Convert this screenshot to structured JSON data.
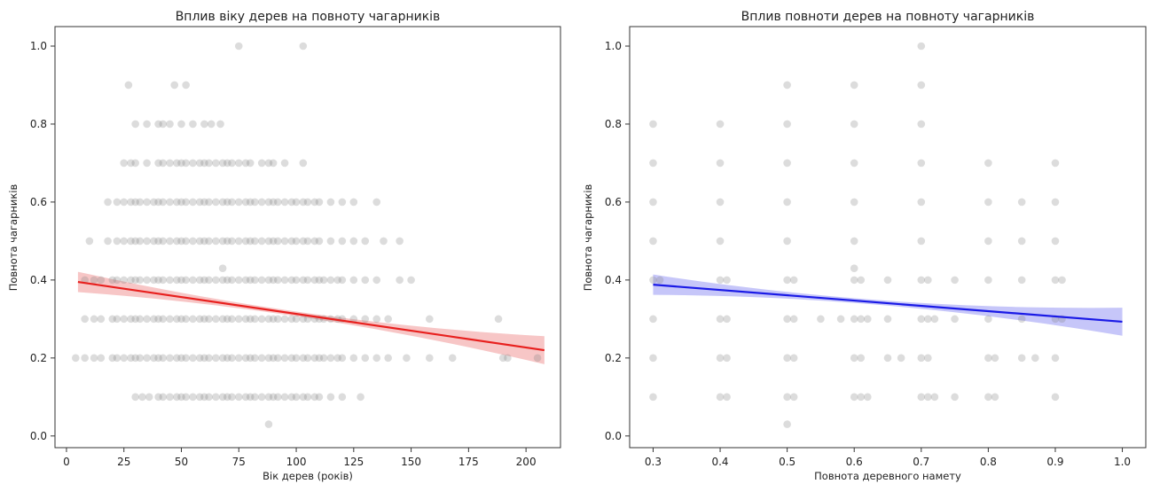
{
  "chart_data": [
    {
      "type": "scatter",
      "title": "Вплив віку дерев на повноту чагарників",
      "xlabel": "Вік дерев (років)",
      "ylabel": "Повнота чагарників",
      "xlim": [
        -5,
        215
      ],
      "ylim": [
        -0.03,
        1.05
      ],
      "xticks": [
        0,
        25,
        50,
        75,
        100,
        125,
        150,
        175,
        200
      ],
      "xtick_labels": [
        "0",
        "25",
        "50",
        "75",
        "100",
        "125",
        "150",
        "175",
        "200"
      ],
      "yticks": [
        0.0,
        0.2,
        0.4,
        0.6,
        0.8,
        1.0
      ],
      "ytick_labels": [
        "0.0",
        "0.2",
        "0.4",
        "0.6",
        "0.8",
        "1.0"
      ],
      "grid": false,
      "point_color": "#808080",
      "regression": {
        "x": [
          5,
          208
        ],
        "y": [
          0.395,
          0.22
        ],
        "color": "#e8201e",
        "band_color": "#f2a0a0"
      },
      "points_by_level": [
        {
          "y": 1.0,
          "x": [
            75,
            103
          ]
        },
        {
          "y": 0.9,
          "x": [
            27,
            47,
            52
          ]
        },
        {
          "y": 0.8,
          "x": [
            30,
            35,
            40,
            42,
            45,
            50,
            55,
            60,
            63,
            67
          ]
        },
        {
          "y": 0.7,
          "x": [
            25,
            28,
            30,
            35,
            40,
            42,
            45,
            48,
            50,
            52,
            55,
            58,
            60,
            62,
            65,
            68,
            70,
            72,
            75,
            78,
            80,
            85,
            88,
            90,
            95,
            103
          ]
        },
        {
          "y": 0.6,
          "x": [
            18,
            22,
            25,
            28,
            30,
            32,
            35,
            38,
            40,
            42,
            45,
            48,
            50,
            52,
            55,
            58,
            60,
            62,
            65,
            68,
            70,
            72,
            75,
            78,
            80,
            82,
            85,
            88,
            90,
            92,
            95,
            98,
            100,
            103,
            105,
            108,
            110,
            115,
            120,
            125,
            135
          ]
        },
        {
          "y": 0.5,
          "x": [
            10,
            18,
            22,
            25,
            28,
            30,
            32,
            35,
            38,
            40,
            42,
            45,
            48,
            50,
            52,
            55,
            58,
            60,
            62,
            65,
            68,
            70,
            72,
            75,
            78,
            80,
            82,
            85,
            88,
            90,
            92,
            95,
            98,
            100,
            103,
            105,
            108,
            110,
            115,
            120,
            125,
            130,
            138,
            145
          ]
        },
        {
          "y": 0.43,
          "x": [
            68
          ]
        },
        {
          "y": 0.4,
          "x": [
            8,
            12,
            15,
            20,
            22,
            25,
            28,
            30,
            32,
            35,
            38,
            40,
            42,
            45,
            48,
            50,
            52,
            55,
            58,
            60,
            62,
            65,
            68,
            70,
            72,
            75,
            78,
            80,
            82,
            85,
            88,
            90,
            92,
            95,
            98,
            100,
            103,
            105,
            108,
            110,
            112,
            115,
            118,
            120,
            125,
            130,
            135,
            145,
            150
          ]
        },
        {
          "y": 0.3,
          "x": [
            8,
            12,
            15,
            20,
            22,
            25,
            28,
            30,
            32,
            35,
            38,
            40,
            42,
            45,
            48,
            50,
            52,
            55,
            58,
            60,
            62,
            65,
            68,
            70,
            72,
            75,
            78,
            80,
            82,
            85,
            88,
            90,
            92,
            95,
            98,
            100,
            103,
            105,
            108,
            110,
            112,
            115,
            118,
            120,
            125,
            130,
            135,
            140,
            158,
            188
          ]
        },
        {
          "y": 0.2,
          "x": [
            4,
            8,
            12,
            15,
            20,
            22,
            25,
            28,
            30,
            32,
            35,
            38,
            40,
            42,
            45,
            48,
            50,
            52,
            55,
            58,
            60,
            62,
            65,
            68,
            70,
            72,
            75,
            78,
            80,
            82,
            85,
            88,
            90,
            92,
            95,
            98,
            100,
            103,
            105,
            108,
            110,
            112,
            115,
            118,
            120,
            125,
            130,
            135,
            140,
            148,
            158,
            168,
            190,
            192,
            205
          ]
        },
        {
          "y": 0.1,
          "x": [
            30,
            33,
            36,
            40,
            42,
            45,
            48,
            50,
            52,
            55,
            58,
            60,
            62,
            65,
            68,
            70,
            72,
            75,
            78,
            80,
            82,
            85,
            88,
            90,
            92,
            95,
            98,
            100,
            103,
            105,
            108,
            110,
            115,
            120,
            128
          ]
        },
        {
          "y": 0.03,
          "x": [
            88
          ]
        }
      ]
    },
    {
      "type": "scatter",
      "title": "Вплив повноти дерев на повноту чагарників",
      "xlabel": "Повнота деревного намету",
      "ylabel": "Повнота чагарників",
      "xlim": [
        0.265,
        1.035
      ],
      "ylim": [
        -0.03,
        1.05
      ],
      "xticks": [
        0.3,
        0.4,
        0.5,
        0.6,
        0.7,
        0.8,
        0.9,
        1.0
      ],
      "xtick_labels": [
        "0.3",
        "0.4",
        "0.5",
        "0.6",
        "0.7",
        "0.8",
        "0.9",
        "1.0"
      ],
      "yticks": [
        0.0,
        0.2,
        0.4,
        0.6,
        0.8,
        1.0
      ],
      "ytick_labels": [
        "0.0",
        "0.2",
        "0.4",
        "0.6",
        "0.8",
        "1.0"
      ],
      "grid": false,
      "point_color": "#808080",
      "regression": {
        "x": [
          0.3,
          1.0
        ],
        "y": [
          0.388,
          0.293
        ],
        "color": "#1a1ae6",
        "band_color": "#a0a0f5"
      },
      "points_by_level": [
        {
          "y": 1.0,
          "x": [
            0.7
          ]
        },
        {
          "y": 0.9,
          "x": [
            0.5,
            0.6,
            0.7
          ]
        },
        {
          "y": 0.8,
          "x": [
            0.3,
            0.4,
            0.5,
            0.6,
            0.7
          ]
        },
        {
          "y": 0.7,
          "x": [
            0.3,
            0.4,
            0.5,
            0.6,
            0.7,
            0.8,
            0.9
          ]
        },
        {
          "y": 0.6,
          "x": [
            0.3,
            0.4,
            0.5,
            0.6,
            0.7,
            0.8,
            0.85,
            0.9
          ]
        },
        {
          "y": 0.5,
          "x": [
            0.3,
            0.4,
            0.5,
            0.6,
            0.7,
            0.8,
            0.85,
            0.9
          ]
        },
        {
          "y": 0.43,
          "x": [
            0.6
          ]
        },
        {
          "y": 0.4,
          "x": [
            0.3,
            0.31,
            0.4,
            0.41,
            0.5,
            0.51,
            0.6,
            0.61,
            0.65,
            0.7,
            0.71,
            0.75,
            0.8,
            0.85,
            0.9,
            0.91
          ]
        },
        {
          "y": 0.3,
          "x": [
            0.3,
            0.4,
            0.41,
            0.5,
            0.51,
            0.55,
            0.58,
            0.6,
            0.61,
            0.62,
            0.65,
            0.7,
            0.71,
            0.72,
            0.75,
            0.8,
            0.85,
            0.9,
            0.91
          ]
        },
        {
          "y": 0.2,
          "x": [
            0.3,
            0.4,
            0.41,
            0.5,
            0.51,
            0.6,
            0.61,
            0.65,
            0.67,
            0.7,
            0.71,
            0.8,
            0.81,
            0.85,
            0.87,
            0.9
          ]
        },
        {
          "y": 0.1,
          "x": [
            0.3,
            0.4,
            0.41,
            0.5,
            0.51,
            0.6,
            0.61,
            0.62,
            0.7,
            0.71,
            0.72,
            0.75,
            0.8,
            0.81,
            0.9
          ]
        },
        {
          "y": 0.03,
          "x": [
            0.5
          ]
        }
      ]
    }
  ]
}
